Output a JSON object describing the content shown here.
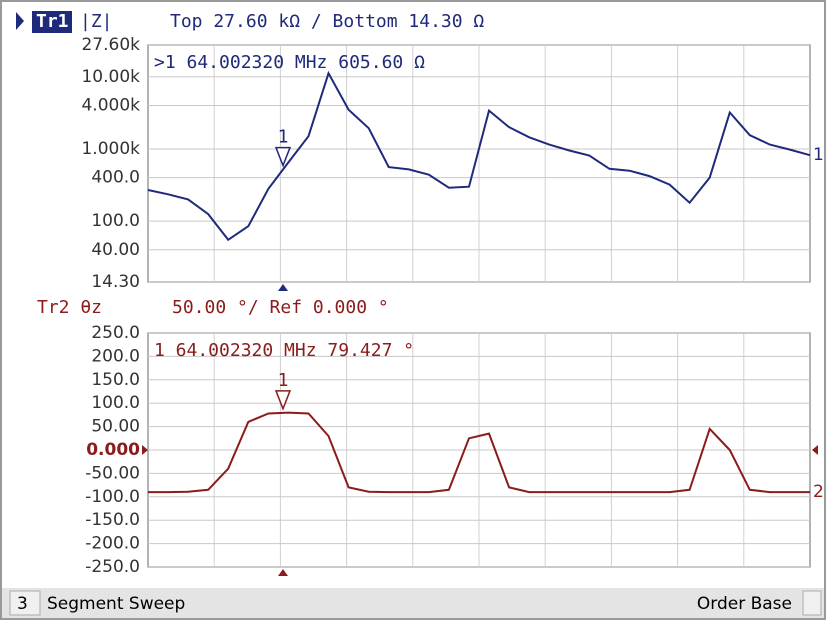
{
  "chart_data": [
    {
      "type": "line",
      "trace": "Tr1",
      "format": "|Z|",
      "scale_text": "Top 27.60 kΩ / Bottom 14.30 Ω",
      "marker_text": ">1 64.002320 MHz  605.60 Ω",
      "marker_label": "1",
      "trace_label": "1",
      "color": "#1f2a7a",
      "log_y": true,
      "grid": true,
      "ylim": [
        14.3,
        27600
      ],
      "yticks": [
        {
          "value": 27600,
          "label": "27.60k"
        },
        {
          "value": 10000,
          "label": "10.00k"
        },
        {
          "value": 4000,
          "label": "4.000k"
        },
        {
          "value": 1000,
          "label": "1.000k"
        },
        {
          "value": 400,
          "label": "400.0"
        },
        {
          "value": 100,
          "label": "100.0"
        },
        {
          "value": 40,
          "label": "40.00"
        },
        {
          "value": 14.3,
          "label": "14.30"
        }
      ],
      "values": [
        270,
        235,
        200,
        125,
        55,
        85,
        280,
        650,
        1500,
        11200,
        3500,
        1940,
        560,
        520,
        440,
        290,
        300,
        3400,
        2000,
        1450,
        1150,
        950,
        810,
        530,
        500,
        420,
        320,
        180,
        400,
        3200,
        1550,
        1150,
        980,
        820
      ]
    },
    {
      "type": "line",
      "trace": "Tr2 θz",
      "scale_text": "50.00 °/ Ref 0.000 °",
      "marker_text": "1 64.002320 MHz   79.427 °",
      "marker_label": "1",
      "trace_label": "2",
      "color": "#8b1c1c",
      "log_y": false,
      "grid": true,
      "ylim": [
        -250,
        250
      ],
      "yticks": [
        {
          "value": 250,
          "label": "250.0"
        },
        {
          "value": 200,
          "label": "200.0"
        },
        {
          "value": 150,
          "label": "150.0"
        },
        {
          "value": 100,
          "label": "100.0"
        },
        {
          "value": 50,
          "label": "50.00"
        },
        {
          "value": 0,
          "label": "0.000"
        },
        {
          "value": -50,
          "label": "-50.00"
        },
        {
          "value": -100,
          "label": "-100.0"
        },
        {
          "value": -150,
          "label": "-150.0"
        },
        {
          "value": -200,
          "label": "-200.0"
        },
        {
          "value": -250,
          "label": "-250.0"
        }
      ],
      "values": [
        -90,
        -90,
        -89,
        -85,
        -40,
        60,
        78,
        80,
        78,
        30,
        -80,
        -89,
        -90,
        -90,
        -90,
        -85,
        25,
        35,
        -80,
        -90,
        -90,
        -90,
        -90,
        -90,
        -90,
        -90,
        -90,
        -85,
        45,
        0,
        -85,
        -90,
        -90,
        -90
      ]
    }
  ],
  "status_bar": {
    "channel": "3",
    "sweep": "Segment Sweep",
    "mode": "Order Base"
  }
}
